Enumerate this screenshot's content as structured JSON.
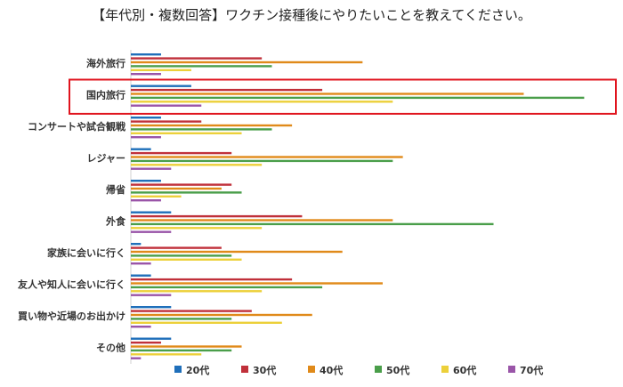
{
  "chart_data": {
    "type": "bar",
    "orientation": "horizontal",
    "title": "【年代別・複数回答】ワクチン接種後にやりたいことを教えてください。",
    "categories": [
      "海外旅行",
      "国内旅行",
      "コンサートや試合観戦",
      "レジャー",
      "帰省",
      "外食",
      "家族に会いに行く",
      "友人や知人に会いに行く",
      "買い物や近場のお出かけ",
      "その他"
    ],
    "series": [
      {
        "name": "20代",
        "color": "#1f6fba",
        "values": [
          6,
          12,
          6,
          4,
          6,
          8,
          2,
          4,
          8,
          8
        ]
      },
      {
        "name": "30代",
        "color": "#c0303a",
        "values": [
          26,
          38,
          14,
          20,
          20,
          34,
          18,
          32,
          24,
          6
        ]
      },
      {
        "name": "40代",
        "color": "#e08a1a",
        "values": [
          46,
          78,
          32,
          54,
          18,
          52,
          42,
          50,
          36,
          22
        ]
      },
      {
        "name": "50代",
        "color": "#4a9e4a",
        "values": [
          28,
          90,
          28,
          52,
          22,
          72,
          20,
          38,
          20,
          20
        ]
      },
      {
        "name": "60代",
        "color": "#ecd03a",
        "values": [
          12,
          52,
          22,
          26,
          10,
          26,
          22,
          26,
          30,
          14
        ]
      },
      {
        "name": "70代",
        "color": "#9a55a8",
        "values": [
          6,
          14,
          6,
          8,
          6,
          8,
          4,
          8,
          4,
          2
        ]
      }
    ],
    "xlim": [
      0,
      100
    ],
    "grid": false,
    "legend": "bottom",
    "highlight_category": "国内旅行",
    "highlight_color": "#e0141e"
  }
}
